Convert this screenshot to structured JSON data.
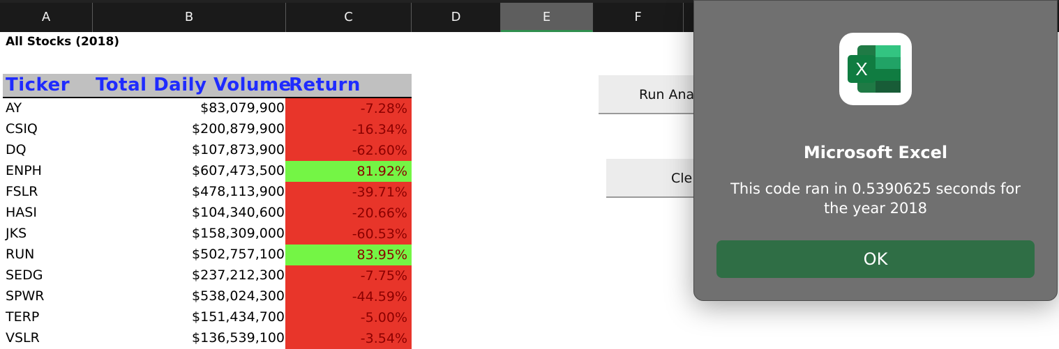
{
  "columns": [
    "A",
    "B",
    "C",
    "D",
    "E",
    "F"
  ],
  "selected_column": "E",
  "sheet": {
    "title": "All Stocks (2018)",
    "headers": {
      "ticker": "Ticker",
      "volume": "Total Daily Volume",
      "return": "Return"
    },
    "rows": [
      {
        "ticker": "AY",
        "volume": "$83,079,900",
        "ret": "-7.28%",
        "positive": false
      },
      {
        "ticker": "CSIQ",
        "volume": "$200,879,900",
        "ret": "-16.34%",
        "positive": false
      },
      {
        "ticker": "DQ",
        "volume": "$107,873,900",
        "ret": "-62.60%",
        "positive": false
      },
      {
        "ticker": "ENPH",
        "volume": "$607,473,500",
        "ret": "81.92%",
        "positive": true
      },
      {
        "ticker": "FSLR",
        "volume": "$478,113,900",
        "ret": "-39.71%",
        "positive": false
      },
      {
        "ticker": "HASI",
        "volume": "$104,340,600",
        "ret": "-20.66%",
        "positive": false
      },
      {
        "ticker": "JKS",
        "volume": "$158,309,000",
        "ret": "-60.53%",
        "positive": false
      },
      {
        "ticker": "RUN",
        "volume": "$502,757,100",
        "ret": "83.95%",
        "positive": true
      },
      {
        "ticker": "SEDG",
        "volume": "$237,212,300",
        "ret": "-7.75%",
        "positive": false
      },
      {
        "ticker": "SPWR",
        "volume": "$538,024,300",
        "ret": "-44.59%",
        "positive": false
      },
      {
        "ticker": "TERP",
        "volume": "$151,434,700",
        "ret": "-5.00%",
        "positive": false
      },
      {
        "ticker": "VSLR",
        "volume": "$136,539,100",
        "ret": "-3.54%",
        "positive": false
      }
    ]
  },
  "buttons": {
    "run": "Run Ana",
    "clear": "Cle"
  },
  "dialog": {
    "app_name": "Microsoft Excel",
    "message": "This code ran in 0.5390625 seconds for the year 2018",
    "ok_label": "OK",
    "icon_letter": "X"
  },
  "colors": {
    "negative": "#e8352a",
    "positive": "#74f545",
    "header_text": "#1f2bff",
    "ok_button": "#2f6e45"
  }
}
